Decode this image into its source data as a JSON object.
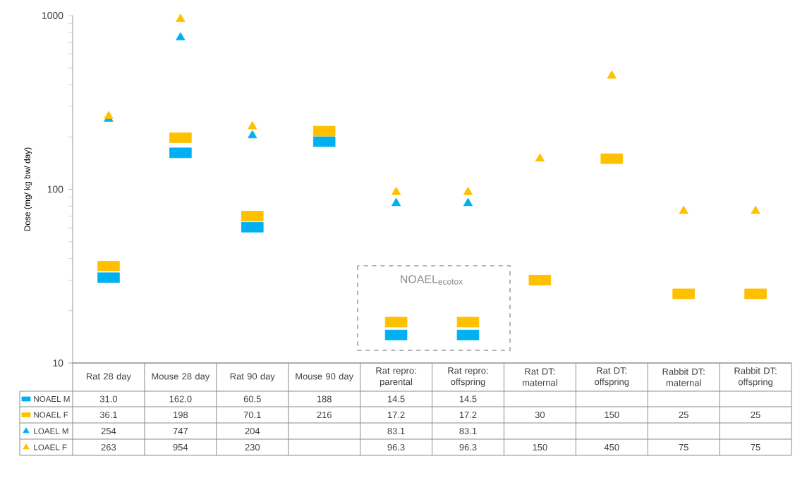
{
  "chart_data": {
    "type": "scatter",
    "ylabel": "Dose (mg/ kg bw/ day)",
    "log": "y",
    "ylim": [
      10,
      1000
    ],
    "yticks": [
      10,
      100,
      1000
    ],
    "legend": "bottom left",
    "categories": [
      "Rat 28 day",
      "Mouse 28 day",
      "Rat 90 day",
      "Mouse 90 day",
      "Rat repro: parental",
      "Rat repro: offspring",
      "Rat DT: maternal",
      "Rat DT: offspring",
      "Rabbit DT: maternal",
      "Rabbit DT: offspring"
    ],
    "series": [
      {
        "name": "NOAEL M",
        "color": "#00b0f0",
        "marker": "square",
        "values": [
          31.0,
          162.0,
          60.5,
          188,
          14.5,
          14.5,
          null,
          null,
          null,
          null
        ],
        "value_labels": [
          "31.0",
          "162.0",
          "60.5",
          "188",
          "14.5",
          "14.5",
          null,
          null,
          null,
          null
        ]
      },
      {
        "name": "NOAEL F",
        "color": "#ffc000",
        "marker": "square",
        "values": [
          36.1,
          198,
          70.1,
          216,
          17.2,
          17.2,
          30,
          150,
          25,
          25
        ],
        "value_labels": [
          "36.1",
          "198",
          "70.1",
          "216",
          "17.2",
          "17.2",
          "30",
          "150",
          "25",
          "25"
        ]
      },
      {
        "name": "LOAEL M",
        "color": "#00b0f0",
        "marker": "triangle",
        "values": [
          254,
          747,
          204,
          null,
          83.1,
          83.1,
          null,
          null,
          null,
          null
        ],
        "value_labels": [
          "254",
          "747",
          "204",
          null,
          "83.1",
          "83.1",
          null,
          null,
          null,
          null
        ]
      },
      {
        "name": "LOAEL F",
        "color": "#ffc000",
        "marker": "triangle",
        "values": [
          263,
          954,
          230,
          null,
          96.3,
          96.3,
          150,
          450,
          75,
          75
        ],
        "value_labels": [
          "263",
          "954",
          "230",
          null,
          "96.3",
          "96.3",
          "150",
          "450",
          "75",
          "75"
        ]
      }
    ],
    "annotations": [
      "NOAEL$_{ecotox}$"
    ]
  }
}
